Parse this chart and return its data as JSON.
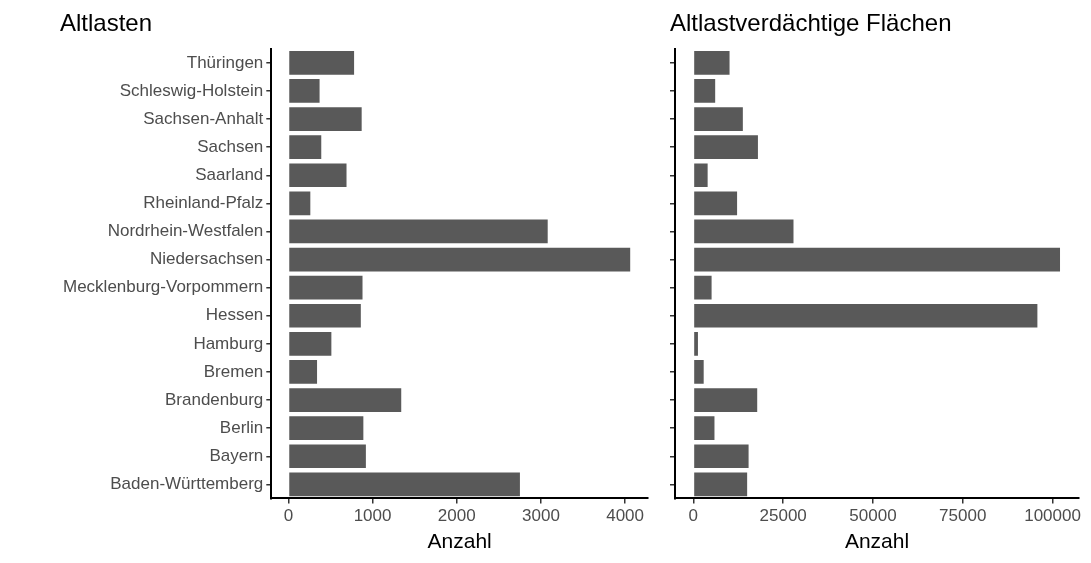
{
  "chart_data": [
    {
      "type": "bar",
      "orientation": "horizontal",
      "title": "Altlasten",
      "xlabel": "Anzahl",
      "grid": false,
      "categories": [
        "Thüringen",
        "Schleswig-Holstein",
        "Sachsen-Anhalt",
        "Sachsen",
        "Saarland",
        "Rheinland-Pfalz",
        "Nordrhein-Westfalen",
        "Niedersachsen",
        "Mecklenburg-Vorpommern",
        "Hessen",
        "Hamburg",
        "Bremen",
        "Brandenburg",
        "Berlin",
        "Bayern",
        "Baden-Württemberg"
      ],
      "values": [
        790,
        380,
        880,
        400,
        700,
        270,
        3090,
        4070,
        890,
        870,
        520,
        350,
        1350,
        900,
        930,
        2760
      ],
      "color": "#595959",
      "xlim": [
        -203,
        4272
      ],
      "xticks": [
        0,
        1000,
        2000,
        3000,
        4000
      ]
    },
    {
      "type": "bar",
      "orientation": "horizontal",
      "title": "Altlastverdächtige Flächen",
      "xlabel": "Anzahl",
      "grid": false,
      "tick_labels": "x",
      "categories": [
        null,
        null,
        null,
        null,
        null,
        null,
        null,
        null,
        null,
        null,
        null,
        null,
        null,
        null,
        null,
        null
      ],
      "values": [
        10300,
        6300,
        14000,
        18200,
        4200,
        12400,
        28100,
        102300,
        5300,
        96000,
        1500,
        3100,
        18000,
        6100,
        15600,
        15200
      ],
      "color": "#595959",
      "xlim": [
        -5110,
        107360
      ],
      "xticks": [
        0,
        25000,
        50000,
        75000,
        100000
      ]
    }
  ]
}
